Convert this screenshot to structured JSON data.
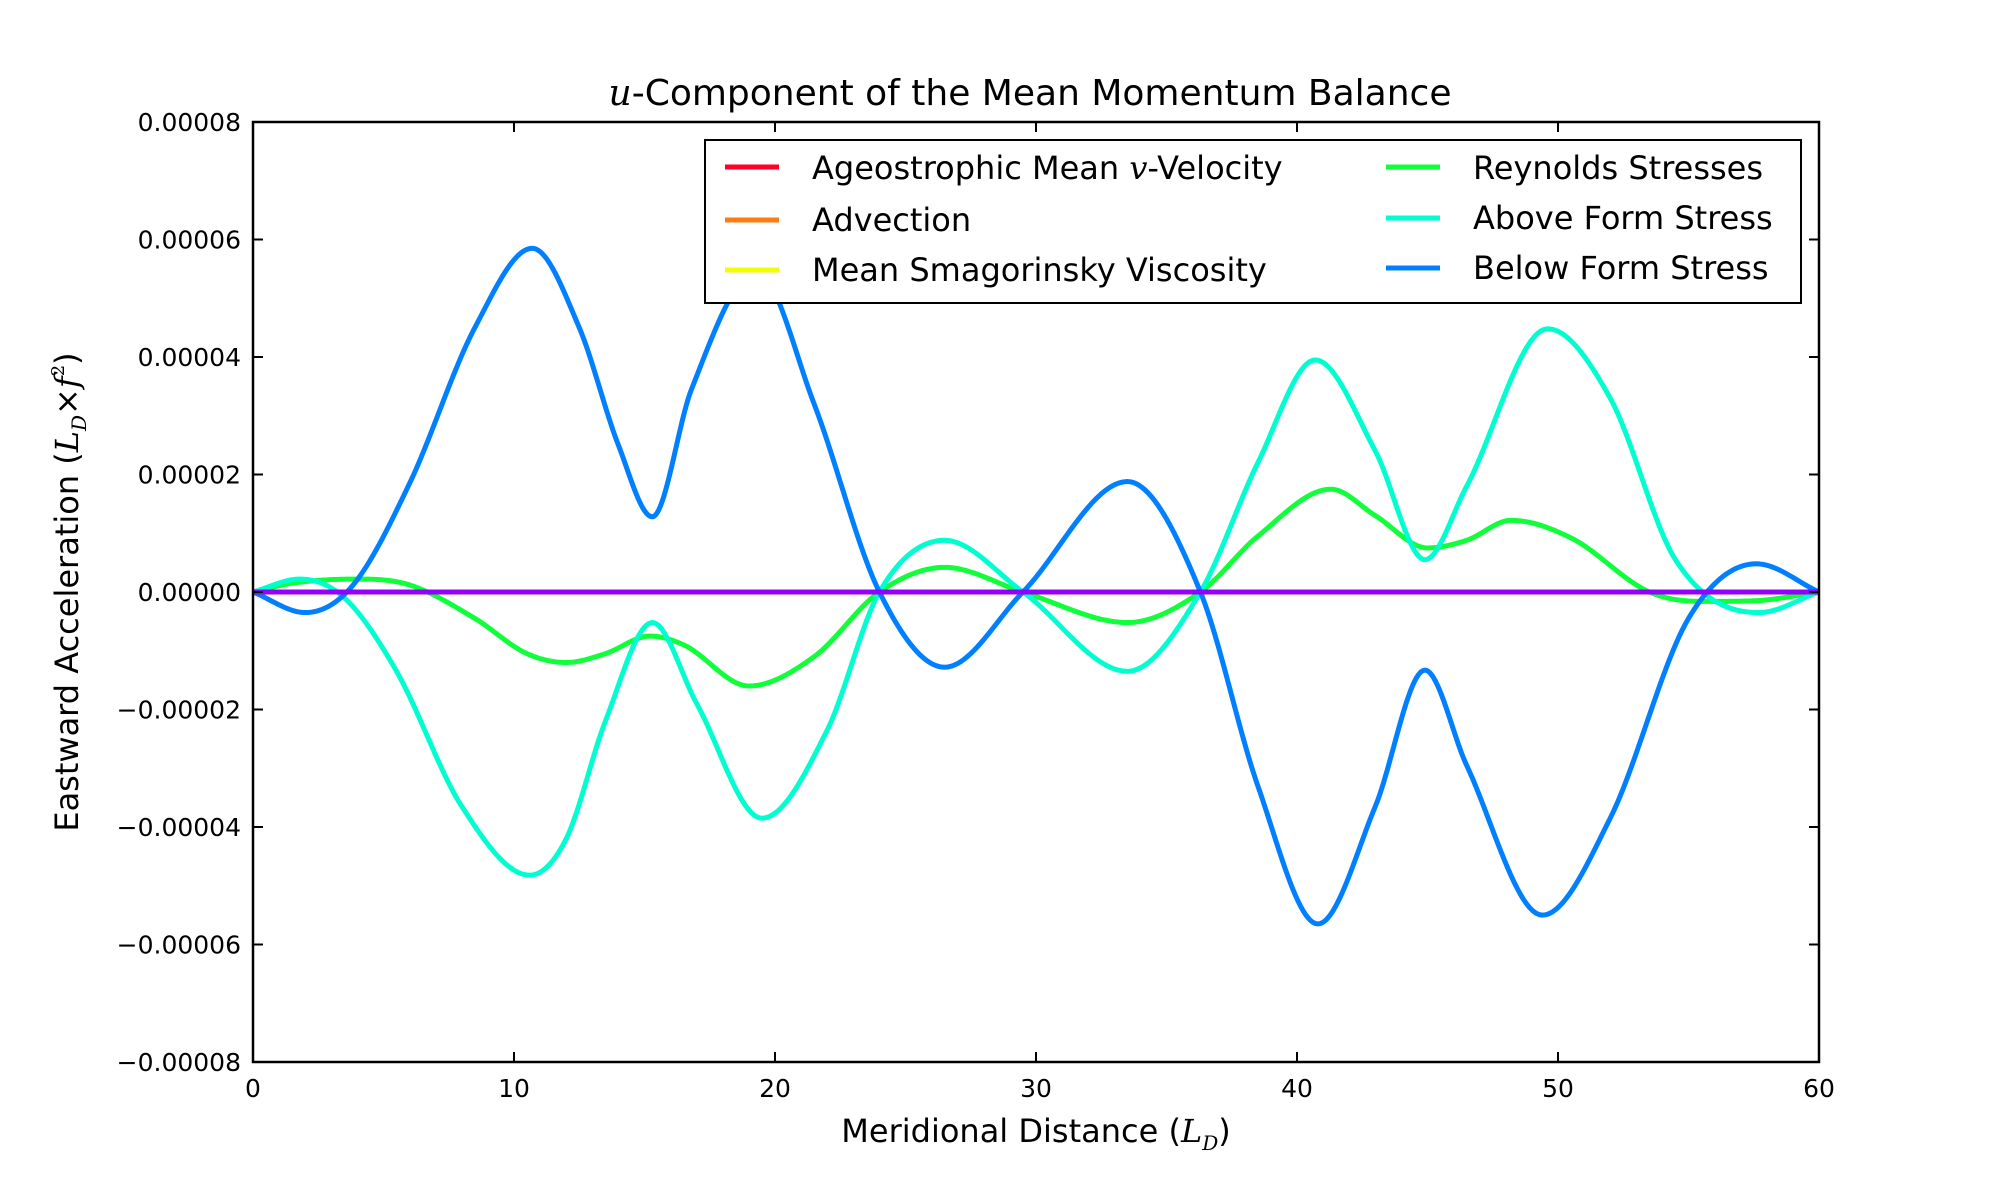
{
  "chart_data": {
    "type": "line",
    "title_var": "u",
    "title_rest": "-Component of the Mean Momentum Balance",
    "xlabel_text": "Meridional Distance (",
    "xlabel_math": "L",
    "xlabel_sub": "D",
    "xlabel_close": ")",
    "ylabel_text": "Eastward Acceleration (",
    "ylabel_math": "L",
    "ylabel_sub": "D",
    "ylabel_times": "×",
    "ylabel_f": "f",
    "ylabel_sup": "2",
    "ylabel_close": ")",
    "xlim": [
      0,
      60
    ],
    "ylim": [
      -8e-05,
      8e-05
    ],
    "xticks": [
      0,
      10,
      20,
      30,
      40,
      50,
      60
    ],
    "xtick_labels": [
      "0",
      "10",
      "20",
      "30",
      "40",
      "50",
      "60"
    ],
    "yticks": [
      8e-05,
      6e-05,
      4e-05,
      2e-05,
      0,
      -2e-05,
      -4e-05,
      -6e-05,
      -8e-05
    ],
    "ytick_labels": [
      "0.00008",
      "0.00006",
      "0.00004",
      "0.00002",
      "0.00000",
      "−0.00002",
      "−0.00004",
      "−0.00006",
      "−0.00008"
    ],
    "grid": false,
    "legend_position": "top-right",
    "legend_columns": 2,
    "series": [
      {
        "name_pre": "Ageostrophic Mean ",
        "name_math": "v",
        "name_post": "-Velocity",
        "color": "#ff0029",
        "x": [
          0,
          60
        ],
        "y": [
          0,
          0
        ]
      },
      {
        "name": "Advection",
        "color": "#ff7a0f",
        "x": [
          0,
          60
        ],
        "y": [
          0,
          0
        ]
      },
      {
        "name": "Mean Smagorinsky Viscosity",
        "color": "#f2ff00",
        "x": [
          0,
          60
        ],
        "y": [
          0,
          0
        ]
      },
      {
        "name": "Reynolds Stresses",
        "color": "#10ff3a",
        "x": [
          0,
          1.5,
          4,
          6,
          8.5,
          10.5,
          12,
          13.5,
          15.2,
          16.5,
          19,
          21.5,
          24,
          26.5,
          29.5,
          33.5,
          36.3,
          38.5,
          41.3,
          43,
          45,
          46.5,
          48.2,
          50.5,
          53.5,
          55.5,
          57.5,
          60
        ],
        "y": [
          0,
          1.5e-06,
          2.2e-06,
          1.2e-06,
          -4.5e-06,
          -1.05e-05,
          -1.2e-05,
          -1.05e-05,
          -7.5e-06,
          -9e-06,
          -1.6e-05,
          -1.1e-05,
          0,
          4.2e-06,
          0,
          -5.2e-06,
          0,
          9.5e-06,
          1.75e-05,
          1.3e-05,
          7.5e-06,
          8.8e-06,
          1.22e-05,
          9.2e-06,
          0,
          -1.6e-06,
          -1.5e-06,
          0
        ]
      },
      {
        "name": "Above Form Stress",
        "color": "#00ffd0",
        "x": [
          0,
          1.8,
          3.5,
          5.5,
          8,
          10.6,
          12,
          13.5,
          15.3,
          17,
          19.5,
          22,
          24,
          26.5,
          29.5,
          33.5,
          36.3,
          38.5,
          40.7,
          43,
          44.9,
          46.5,
          49.6,
          52,
          54.5,
          57.7,
          60
        ],
        "y": [
          0,
          2.2e-06,
          -1e-06,
          -1.35e-05,
          -3.65e-05,
          -4.82e-05,
          -4.2e-05,
          -2.2e-05,
          -5.2e-06,
          -1.9e-05,
          -3.85e-05,
          -2.35e-05,
          0,
          8.8e-06,
          0,
          -1.35e-05,
          0,
          2.2e-05,
          3.95e-05,
          2.4e-05,
          5.5e-06,
          1.8e-05,
          4.48e-05,
          3.3e-05,
          5.5e-06,
          -3.5e-06,
          0
        ]
      },
      {
        "name": "Below Form Stress",
        "color": "#0080ff",
        "x": [
          0,
          2,
          3.8,
          6,
          8.5,
          10.7,
          12.5,
          14,
          15.3,
          16.8,
          19.3,
          21.5,
          24,
          26.5,
          29.5,
          33.5,
          36.3,
          38.5,
          40.8,
          43,
          44.9,
          46.5,
          49.4,
          52,
          55,
          57.6,
          60
        ],
        "y": [
          0,
          -3.5e-06,
          1e-06,
          1.85e-05,
          4.5e-05,
          5.85e-05,
          4.5e-05,
          2.5e-05,
          1.28e-05,
          3.45e-05,
          5.45e-05,
          3.2e-05,
          0,
          -1.28e-05,
          0,
          1.88e-05,
          0,
          -3.3e-05,
          -5.65e-05,
          -3.65e-05,
          -1.33e-05,
          -2.95e-05,
          -5.5e-05,
          -3.85e-05,
          -4.5e-06,
          4.8e-06,
          0
        ]
      },
      {
        "name": "",
        "color": "#9400ff",
        "x": [
          0,
          60
        ],
        "y": [
          0,
          0
        ]
      }
    ]
  }
}
